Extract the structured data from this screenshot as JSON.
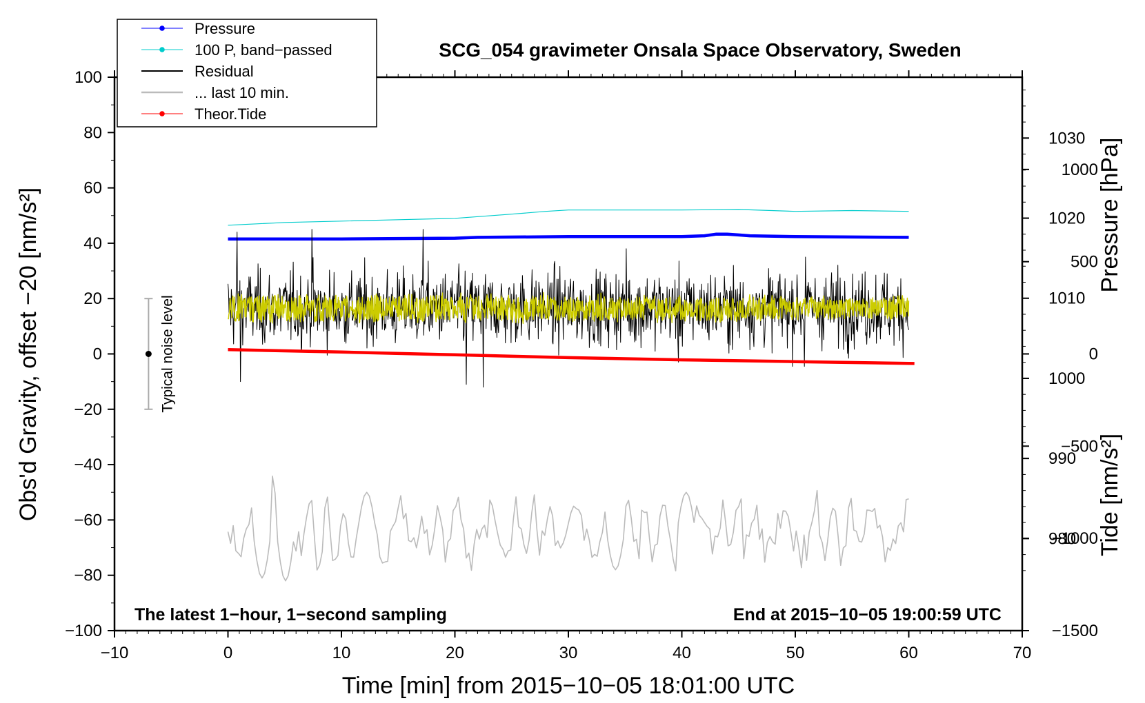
{
  "chart_data": {
    "type": "line",
    "title": "SCG_054 gravimeter Onsala Space Observatory, Sweden",
    "xlabel": "Time [min] from 2015−10−05 18:01:00 UTC",
    "ylabel": "Obs'd Gravity, offset −20 [nm/s²]",
    "ylabel_right_top": "Pressure [hPa]",
    "ylabel_right_bottom": "Tide [nm/s²]",
    "xlim": [
      -10,
      70
    ],
    "ylim": [
      -100,
      100
    ],
    "x_ticks": [
      -10,
      0,
      10,
      20,
      30,
      40,
      50,
      60,
      70
    ],
    "x_tick_labels": [
      "−10",
      "0",
      "10",
      "20",
      "30",
      "40",
      "50",
      "60",
      "70"
    ],
    "y_ticks": [
      -100,
      -80,
      -60,
      -40,
      -20,
      0,
      20,
      40,
      60,
      80,
      100
    ],
    "y_tick_labels": [
      "−100",
      "−80",
      "−60",
      "−40",
      "−20",
      "0",
      "20",
      "40",
      "60",
      "80",
      "100"
    ],
    "pressure_axis": {
      "range": [
        968.5,
        1037.6
      ],
      "ticks": [
        980,
        990,
        1000,
        1010,
        1020,
        1030
      ],
      "tick_labels": [
        "980",
        "990",
        "1000",
        "1010",
        "1020",
        "1030"
      ]
    },
    "tide_axis": {
      "range": [
        -1500,
        1500
      ],
      "ticks": [
        -1500,
        -1000,
        -500,
        0,
        500,
        1000
      ],
      "tick_labels": [
        "−1500",
        "−1000",
        "−500",
        "0",
        "500",
        "1000"
      ]
    },
    "annotations": {
      "bottom_left": "The latest 1−hour, 1−second sampling",
      "bottom_right": "End at 2015−10−05 19:00:59 UTC",
      "noise_label": "Typical noise level",
      "noise_bar": {
        "x": -7,
        "center": 0,
        "half_range": 20
      }
    },
    "legend": [
      {
        "label": "Pressure",
        "color": "#0000ff",
        "marker": true
      },
      {
        "label": "100 P, band−passed",
        "color": "#00cccc",
        "marker": true
      },
      {
        "label": "Residual",
        "color": "#000000",
        "marker": false
      },
      {
        "label": "... last 10 min.",
        "color": "#bbbbbb",
        "marker": false
      },
      {
        "label": "Theor.Tide",
        "color": "#ff0000",
        "marker": true
      }
    ],
    "series": [
      {
        "name": "Pressure",
        "axis": "pressure",
        "color": "#0000ff",
        "x": [
          0,
          10,
          20,
          22,
          30,
          40,
          42,
          43,
          44,
          45,
          46,
          50,
          60
        ],
        "values": [
          1017.4,
          1017.4,
          1017.5,
          1017.6,
          1017.7,
          1017.7,
          1017.8,
          1018.0,
          1018.0,
          1017.9,
          1017.8,
          1017.7,
          1017.6
        ]
      },
      {
        "name": "100 P, band−passed",
        "axis": "gravity",
        "color": "#00cccc",
        "x": [
          0,
          5,
          10,
          15,
          20,
          25,
          28,
          30,
          35,
          40,
          45,
          50,
          55,
          60
        ],
        "values": [
          46.5,
          47.5,
          48,
          48.5,
          49,
          50.5,
          51.5,
          52,
          52,
          52,
          52.2,
          51.5,
          51.8,
          51.5
        ]
      },
      {
        "name": "Residual",
        "axis": "gravity",
        "color": "#000000",
        "x_range": [
          0,
          60
        ],
        "center": 16.5,
        "amplitude": 15,
        "extrema": [
          [
            0.8,
            44
          ],
          [
            7.4,
            45
          ],
          [
            17.2,
            45
          ],
          [
            22.5,
            -12
          ],
          [
            21.0,
            -11
          ],
          [
            1.1,
            -10
          ],
          [
            39.7,
            -3
          ],
          [
            50.8,
            -4.5
          ],
          [
            35.1,
            38
          ],
          [
            50.9,
            35
          ]
        ]
      },
      {
        "name": "Yellow fit",
        "axis": "gravity",
        "color": "#cccc00",
        "x_range": [
          0,
          60
        ],
        "center": 16.5,
        "amplitude": 5
      },
      {
        "name": "... last 10 min.",
        "axis": "gravity",
        "color": "#bbbbbb",
        "x_range": [
          0,
          60
        ],
        "center": -64,
        "amplitude": 10,
        "extrema": [
          [
            3.8,
            -42
          ],
          [
            5.0,
            -82
          ],
          [
            2.9,
            -81
          ],
          [
            39.6,
            -80
          ],
          [
            34.2,
            -78
          ],
          [
            12.2,
            -50
          ],
          [
            40.3,
            -50
          ]
        ]
      },
      {
        "name": "Theor.Tide",
        "axis": "tide",
        "color": "#ff0000",
        "x": [
          0,
          10,
          20,
          30,
          40,
          50,
          60.5
        ],
        "values": [
          23,
          10,
          -5,
          -20,
          -32,
          -42,
          -52
        ]
      }
    ]
  }
}
